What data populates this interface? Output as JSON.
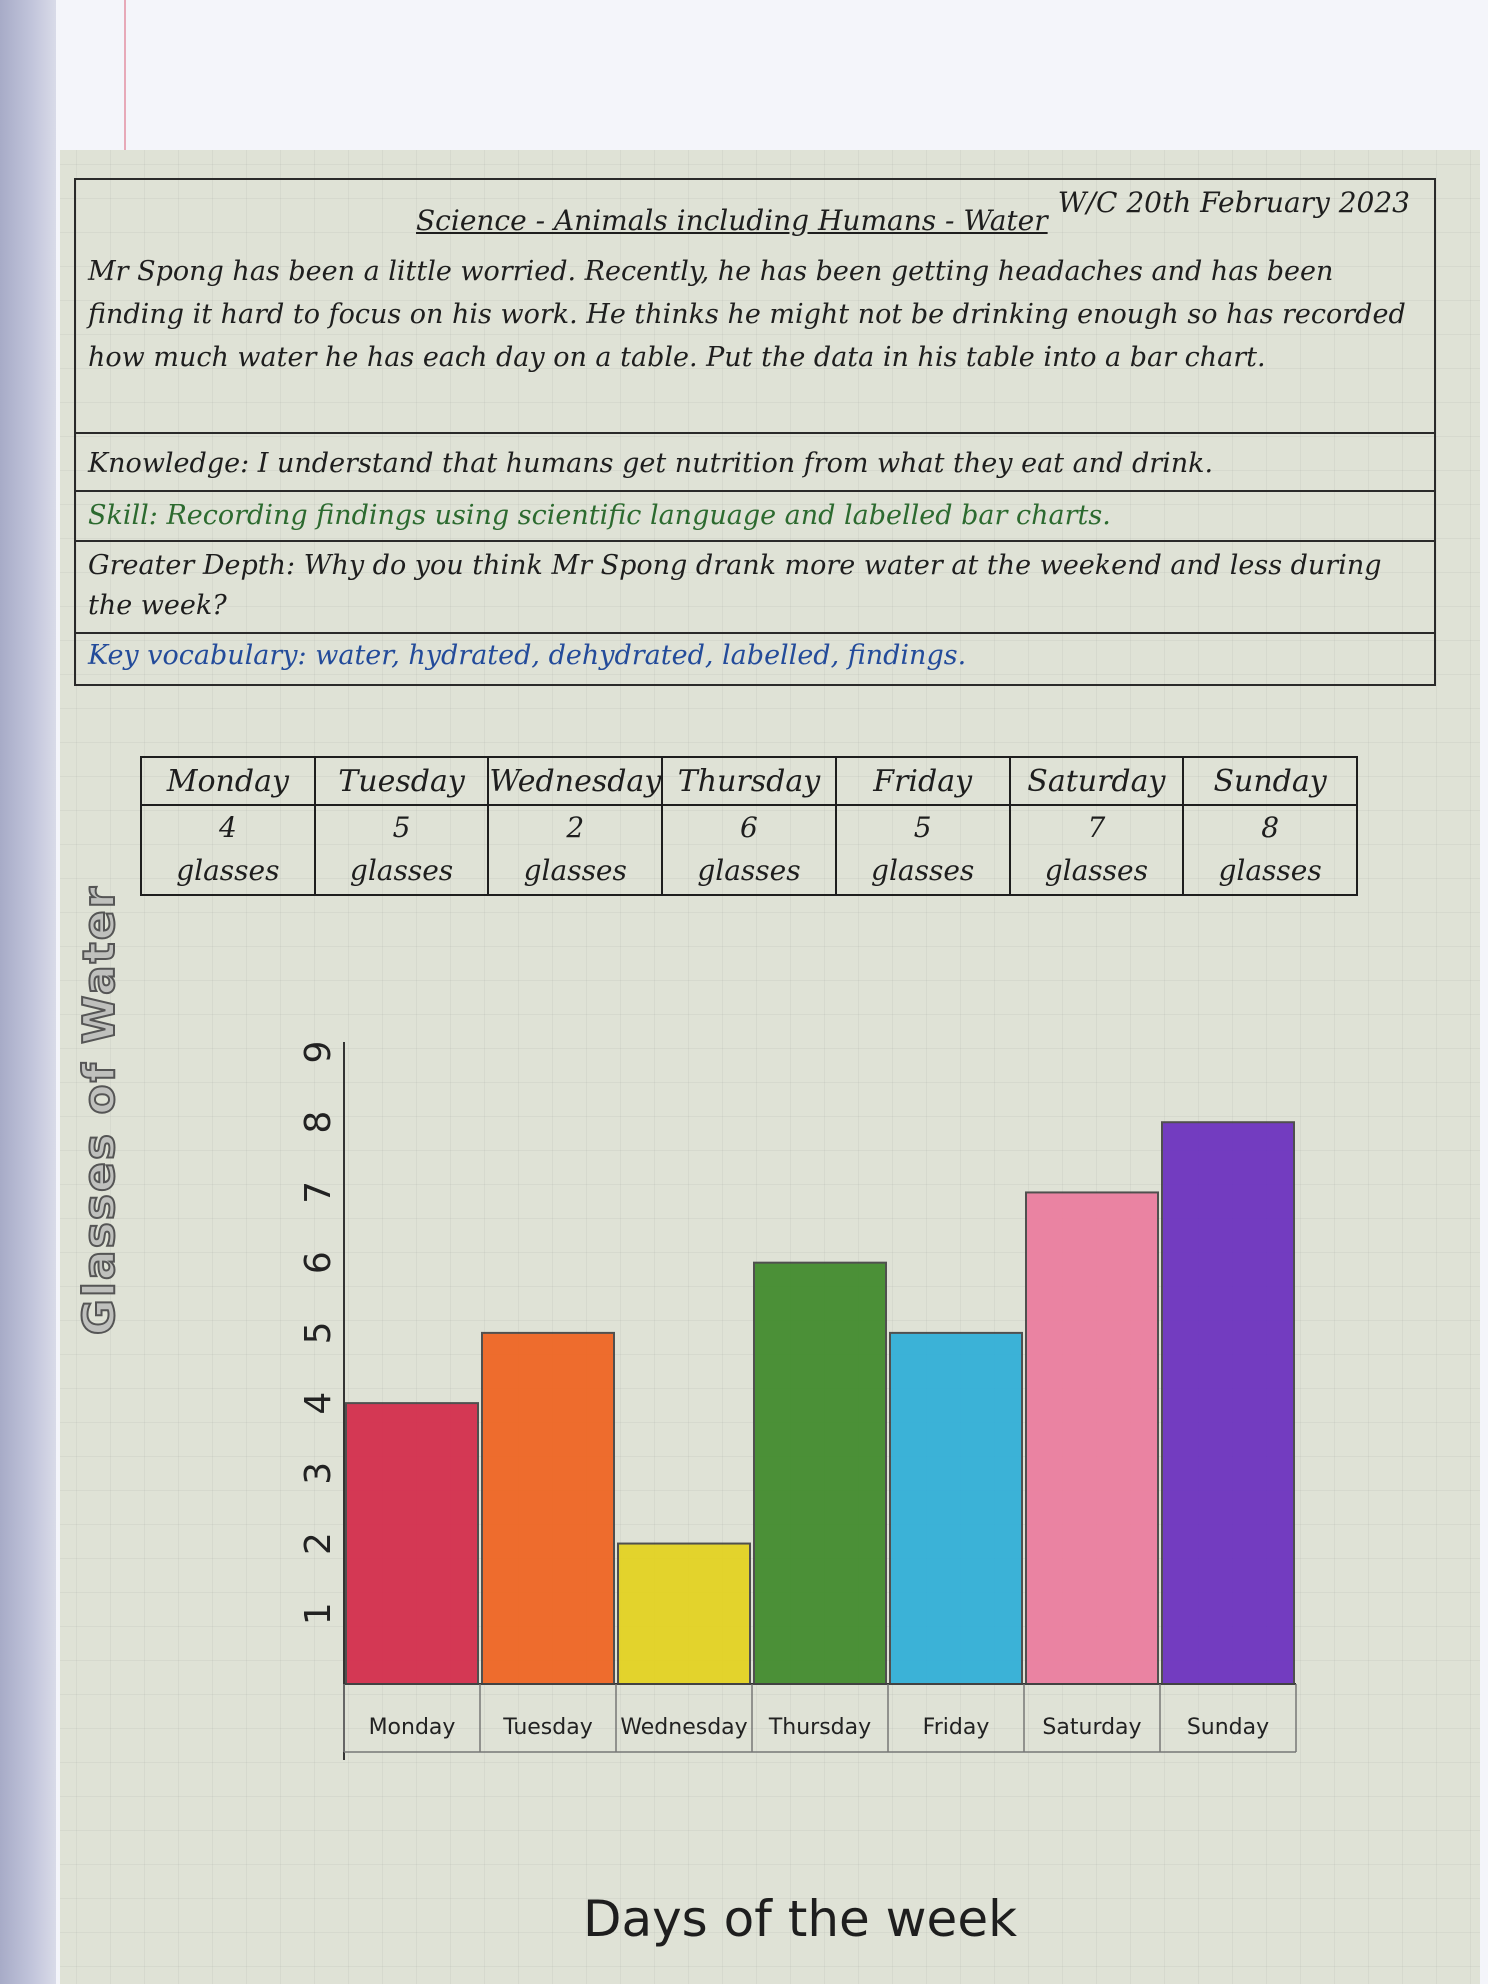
{
  "worksheet": {
    "date": "W/C 20th February 2023",
    "title": "Science - Animals including Humans - Water",
    "intro": "Mr Spong has been a little worried. Recently, he has been getting headaches and has been finding it hard to focus on his work. He thinks he might not be drinking enough so has recorded how much water he has each day on a table. Put the data in his table into a bar chart.",
    "knowledge": "Knowledge: I understand that humans get nutrition from what they eat and drink.",
    "skill": "Skill: Recording findings using scientific language and labelled bar charts.",
    "greater_depth": "Greater Depth: Why do you think Mr Spong drank more water at the weekend and less during the week?",
    "vocabulary": "Key vocabulary: water, hydrated, dehydrated, labelled, findings."
  },
  "table": {
    "days": [
      "Monday",
      "Tuesday",
      "Wednesday",
      "Thursday",
      "Friday",
      "Saturday",
      "Sunday"
    ],
    "counts": [
      "4",
      "5",
      "2",
      "6",
      "5",
      "7",
      "8"
    ],
    "unit": "glasses"
  },
  "chart_data": {
    "type": "bar",
    "categories": [
      "Monday",
      "Tuesday",
      "Wednesday",
      "Thursday",
      "Friday",
      "Saturday",
      "Sunday"
    ],
    "values": [
      4,
      5,
      2,
      6,
      5,
      7,
      8
    ],
    "title": "",
    "xlabel": "Days of the week",
    "ylabel": "Glasses of Water",
    "ylim": [
      0,
      9
    ],
    "yticks": [
      1,
      2,
      3,
      4,
      5,
      6,
      7,
      8,
      9
    ],
    "colors": [
      "#d42a4a",
      "#f0631f",
      "#e4d21e",
      "#3f8a2a",
      "#2eaed8",
      "#ec7c9e",
      "#6a2fbf"
    ],
    "grid": true
  }
}
